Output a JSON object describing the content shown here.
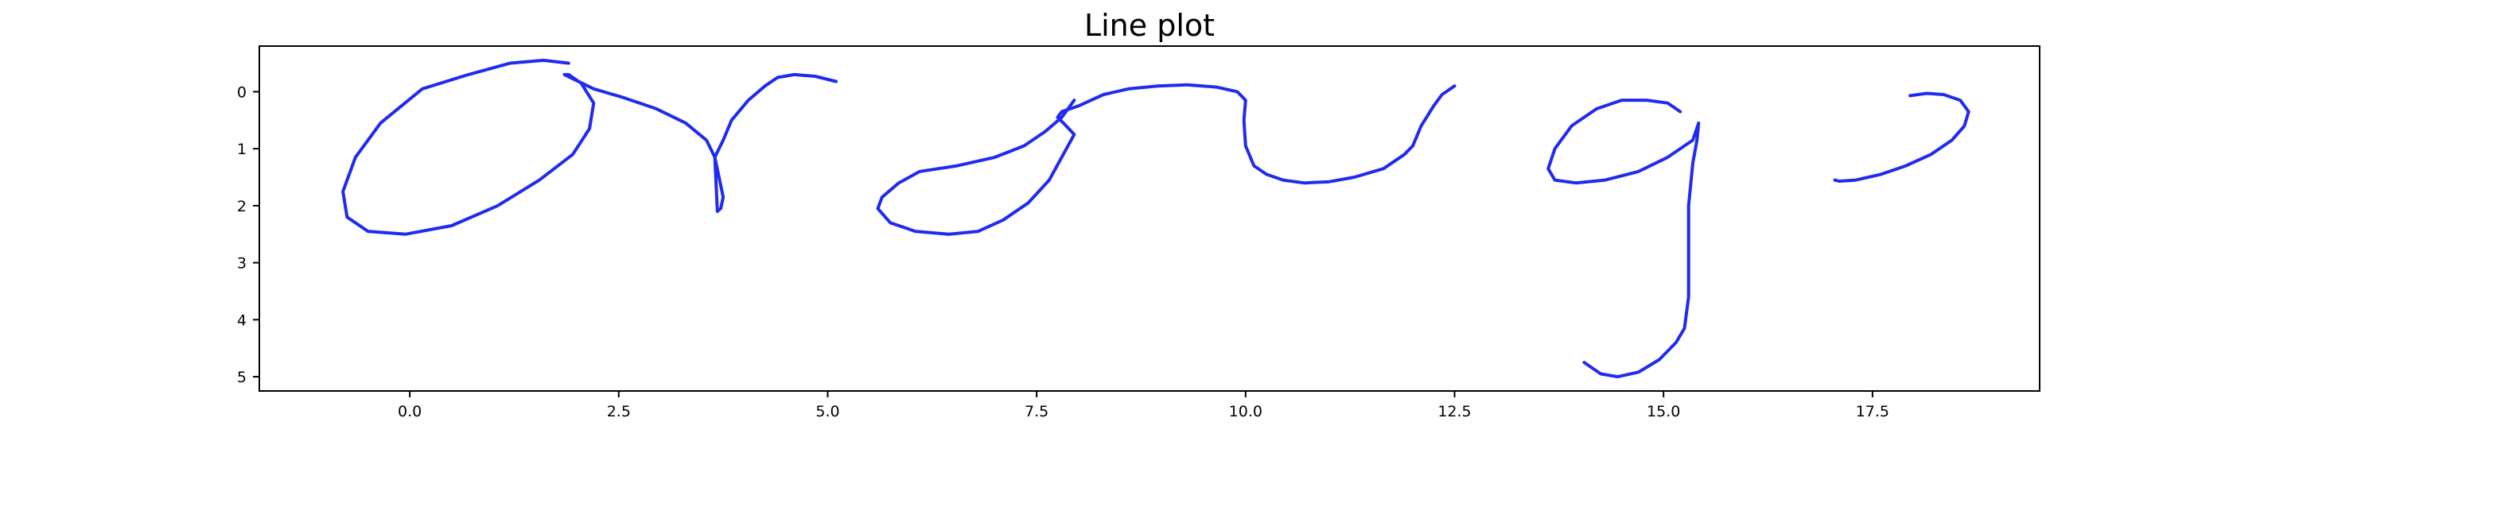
{
  "chart_data": {
    "type": "line",
    "title": "Line plot",
    "xlabel": "",
    "ylabel": "",
    "xlim": [
      -1.8,
      19.5
    ],
    "ylim": [
      5.25,
      -0.8
    ],
    "y_inverted": true,
    "grid": false,
    "x_ticks": [
      0.0,
      2.5,
      5.0,
      7.5,
      10.0,
      12.5,
      15.0,
      17.5
    ],
    "x_tick_labels": [
      "0.0",
      "2.5",
      "5.0",
      "7.5",
      "10.0",
      "12.5",
      "15.0",
      "17.5"
    ],
    "y_ticks": [
      0,
      1,
      2,
      3,
      4,
      5
    ],
    "y_tick_labels": [
      "0",
      "1",
      "2",
      "3",
      "4",
      "5"
    ],
    "color": "#1f2bef",
    "series": [
      {
        "x": [
          1.9,
          1.6,
          1.2,
          0.7,
          0.15,
          -0.35,
          -0.65,
          -0.8,
          -0.75,
          -0.5,
          -0.05,
          0.5,
          1.05,
          1.55,
          1.95,
          2.15,
          2.2,
          2.05,
          1.9,
          1.85,
          2.2,
          2.55,
          2.95,
          3.3,
          3.55,
          3.65,
          3.7,
          3.75,
          3.72,
          3.68,
          3.65,
          3.75,
          3.85,
          4.05,
          4.25,
          4.4,
          4.6,
          4.85,
          5.1
        ],
        "y": [
          -0.5,
          -0.55,
          -0.5,
          -0.3,
          -0.05,
          0.55,
          1.15,
          1.75,
          2.2,
          2.45,
          2.5,
          2.35,
          2.0,
          1.55,
          1.1,
          0.65,
          0.2,
          -0.15,
          -0.3,
          -0.3,
          -0.05,
          0.1,
          0.3,
          0.55,
          0.85,
          1.15,
          1.5,
          1.85,
          2.05,
          2.1,
          1.15,
          0.85,
          0.5,
          0.15,
          -0.1,
          -0.25,
          -0.3,
          -0.27,
          -0.18
        ]
      },
      {
        "x": [
          7.95,
          7.8,
          7.6,
          7.35,
          7.0,
          6.55,
          6.1,
          5.85,
          5.65,
          5.6,
          5.75,
          6.05,
          6.45,
          6.8,
          7.1,
          7.4,
          7.65,
          7.8,
          7.95,
          7.82,
          7.75,
          7.8,
          8.0,
          8.3,
          8.6,
          8.95,
          9.3,
          9.65,
          9.9,
          10.0,
          9.98,
          10.0,
          10.1,
          10.25,
          10.45,
          10.7,
          11.0,
          11.3,
          11.65,
          11.9,
          12.0,
          12.1,
          12.25,
          12.35,
          12.5
        ],
        "y": [
          0.15,
          0.45,
          0.7,
          0.95,
          1.15,
          1.3,
          1.4,
          1.6,
          1.85,
          2.05,
          2.3,
          2.45,
          2.5,
          2.45,
          2.25,
          1.95,
          1.55,
          1.15,
          0.75,
          0.55,
          0.45,
          0.35,
          0.25,
          0.05,
          -0.05,
          -0.1,
          -0.12,
          -0.08,
          0.0,
          0.15,
          0.5,
          0.95,
          1.3,
          1.45,
          1.55,
          1.6,
          1.58,
          1.5,
          1.35,
          1.1,
          0.95,
          0.6,
          0.25,
          0.05,
          -0.1
        ],
        "note_x_reversed": false
      },
      {
        "x": [
          15.2,
          15.05,
          14.8,
          14.5,
          14.2,
          13.9,
          13.7,
          13.62,
          13.7,
          13.95,
          14.3,
          14.7,
          15.05,
          15.35,
          15.42,
          15.4,
          15.35,
          15.3,
          15.3,
          15.3,
          15.25,
          15.15,
          14.95,
          14.7,
          14.45,
          14.25,
          14.05
        ],
        "y": [
          0.35,
          0.2,
          0.15,
          0.15,
          0.3,
          0.6,
          1.0,
          1.35,
          1.55,
          1.6,
          1.55,
          1.4,
          1.15,
          0.85,
          0.55,
          0.85,
          1.25,
          2.0,
          3.0,
          3.6,
          4.15,
          4.4,
          4.7,
          4.92,
          5.0,
          4.95,
          4.75
        ]
      },
      {
        "x": [
          17.05,
          17.1,
          17.3,
          17.6,
          17.9,
          18.2,
          18.45,
          18.6,
          18.65,
          18.55,
          18.35,
          18.15,
          17.95
        ],
        "y": [
          1.55,
          1.57,
          1.55,
          1.45,
          1.3,
          1.1,
          0.85,
          0.6,
          0.35,
          0.15,
          0.05,
          0.03,
          0.07
        ]
      }
    ]
  }
}
